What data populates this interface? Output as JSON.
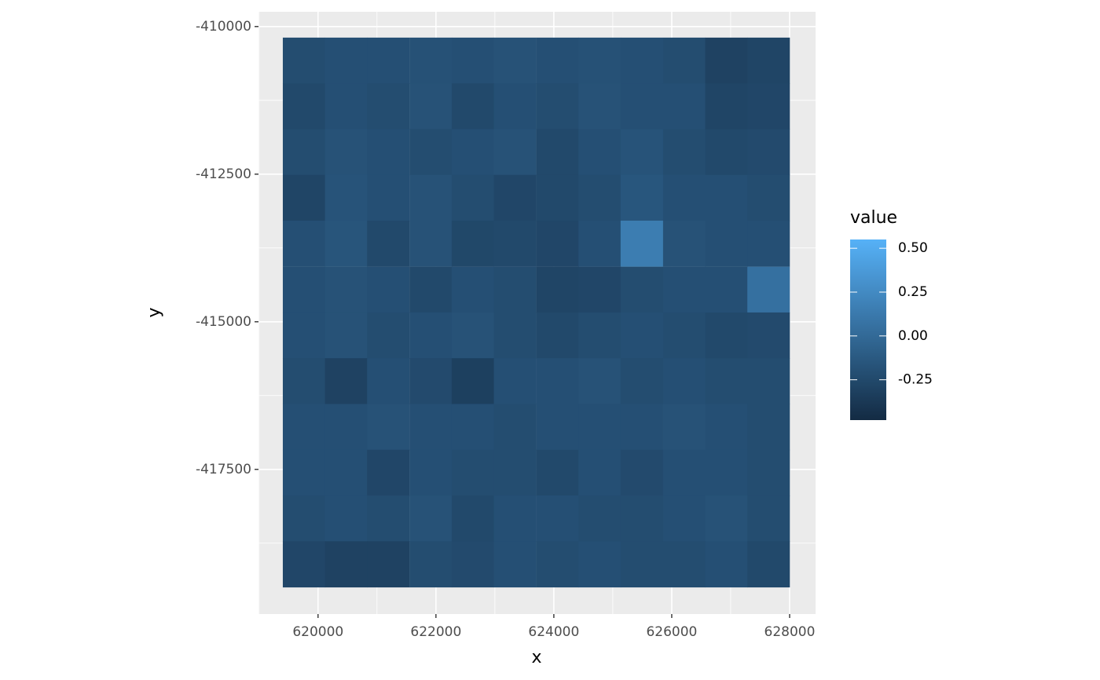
{
  "chart_data": {
    "type": "raster",
    "x_label": "x",
    "y_label": "y",
    "xlim": [
      618990,
      628440
    ],
    "xticks": [
      620000,
      622000,
      624000,
      626000,
      628000
    ],
    "ylim": [
      -419950,
      -409750
    ],
    "yticks": [
      -417500,
      -415000,
      -412500,
      -410000
    ],
    "grid": true,
    "x": [
      619760,
      620475,
      621190,
      621910,
      622625,
      623340,
      624060,
      624775,
      625490,
      626210,
      626925,
      627640
    ],
    "y": [
      -410575,
      -411350,
      -412125,
      -412900,
      -413675,
      -414455,
      -415230,
      -416005,
      -416780,
      -417555,
      -418330,
      -419105
    ],
    "z": [
      [
        -0.22,
        -0.2,
        -0.2,
        -0.19,
        -0.2,
        -0.18,
        -0.2,
        -0.19,
        -0.2,
        -0.22,
        -0.3,
        -0.28
      ],
      [
        -0.25,
        -0.2,
        -0.22,
        -0.18,
        -0.25,
        -0.2,
        -0.22,
        -0.18,
        -0.2,
        -0.2,
        -0.28,
        -0.27
      ],
      [
        -0.22,
        -0.18,
        -0.2,
        -0.22,
        -0.2,
        -0.18,
        -0.25,
        -0.2,
        -0.17,
        -0.22,
        -0.25,
        -0.24
      ],
      [
        -0.28,
        -0.17,
        -0.2,
        -0.18,
        -0.22,
        -0.27,
        -0.25,
        -0.22,
        -0.15,
        -0.2,
        -0.2,
        -0.22
      ],
      [
        -0.2,
        -0.16,
        -0.25,
        -0.18,
        -0.26,
        -0.25,
        -0.27,
        -0.2,
        0.15,
        -0.18,
        -0.2,
        -0.2
      ],
      [
        -0.2,
        -0.18,
        -0.2,
        -0.25,
        -0.2,
        -0.22,
        -0.28,
        -0.27,
        -0.22,
        -0.2,
        -0.2,
        0.05
      ],
      [
        -0.2,
        -0.18,
        -0.22,
        -0.2,
        -0.18,
        -0.22,
        -0.25,
        -0.22,
        -0.2,
        -0.22,
        -0.25,
        -0.24
      ],
      [
        -0.22,
        -0.3,
        -0.2,
        -0.24,
        -0.32,
        -0.2,
        -0.2,
        -0.18,
        -0.22,
        -0.2,
        -0.22,
        -0.22
      ],
      [
        -0.2,
        -0.2,
        -0.18,
        -0.2,
        -0.2,
        -0.22,
        -0.2,
        -0.2,
        -0.2,
        -0.18,
        -0.2,
        -0.22
      ],
      [
        -0.2,
        -0.2,
        -0.27,
        -0.2,
        -0.22,
        -0.22,
        -0.25,
        -0.2,
        -0.24,
        -0.2,
        -0.2,
        -0.22
      ],
      [
        -0.22,
        -0.2,
        -0.22,
        -0.18,
        -0.25,
        -0.2,
        -0.2,
        -0.22,
        -0.22,
        -0.2,
        -0.18,
        -0.22
      ],
      [
        -0.27,
        -0.3,
        -0.3,
        -0.22,
        -0.24,
        -0.2,
        -0.22,
        -0.2,
        -0.22,
        -0.22,
        -0.2,
        -0.25
      ]
    ],
    "colorbar": {
      "title": "value",
      "low": "#132B43",
      "high": "#56B1F7",
      "lim": [
        -0.48,
        0.55
      ],
      "ticks": [
        -0.25,
        {
          "value": 0,
          "label": "0.00"
        },
        0.25,
        {
          "value": 0.5,
          "label": "0.50"
        }
      ]
    }
  }
}
